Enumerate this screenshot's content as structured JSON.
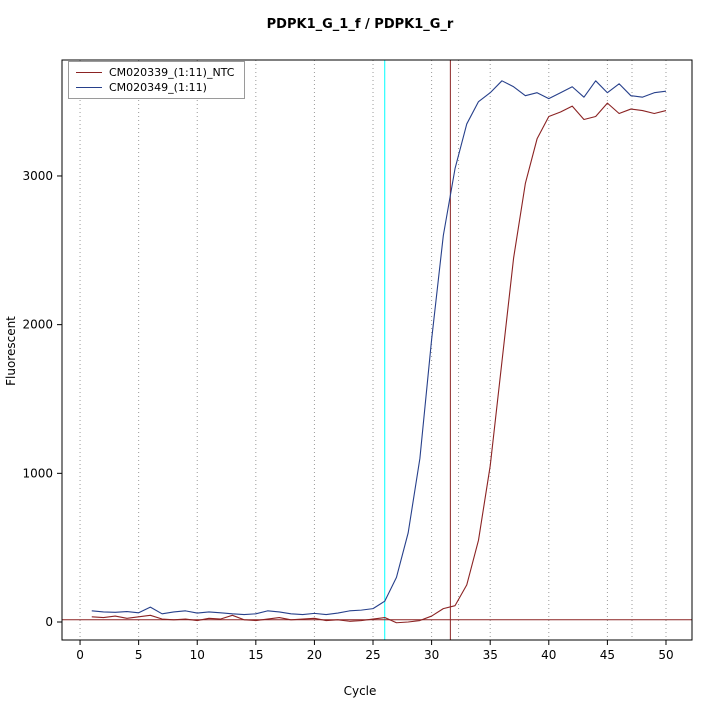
{
  "chart_data": {
    "type": "line",
    "title": "PDPK1_G_1_f / PDPK1_G_r",
    "xlabel": "Cycle",
    "ylabel": "Fluorescent",
    "xlim": [
      -1.54,
      52.22
    ],
    "ylim": [
      -121,
      3780
    ],
    "x_ticks": [
      0,
      5,
      10,
      15,
      20,
      25,
      30,
      35,
      40,
      45,
      50
    ],
    "y_ticks": [
      0,
      1000,
      2000,
      3000
    ],
    "grid": "vertical-dotted",
    "grid_color": "#9a9a9a",
    "legend_position": "top-left",
    "x": [
      1,
      2,
      3,
      4,
      5,
      6,
      7,
      8,
      9,
      10,
      11,
      12,
      13,
      14,
      15,
      16,
      17,
      18,
      19,
      20,
      21,
      22,
      23,
      24,
      25,
      26,
      27,
      28,
      29,
      30,
      31,
      32,
      33,
      34,
      35,
      36,
      37,
      38,
      39,
      40,
      41,
      42,
      43,
      44,
      45,
      46,
      47,
      48,
      49,
      50
    ],
    "series": [
      {
        "name": "CM020339_(1:11)_NTC",
        "color": "#8b2323",
        "values": [
          35,
          30,
          40,
          25,
          35,
          45,
          20,
          15,
          20,
          10,
          25,
          20,
          45,
          15,
          10,
          20,
          30,
          15,
          20,
          25,
          10,
          15,
          5,
          10,
          20,
          30,
          -5,
          0,
          10,
          40,
          90,
          110,
          250,
          550,
          1050,
          1750,
          2450,
          2950,
          3250,
          3400,
          3430,
          3470,
          3380,
          3400,
          3490,
          3420,
          3450,
          3440,
          3420,
          3440
        ]
      },
      {
        "name": "CM020349_(1:11)",
        "color": "#27408b",
        "values": [
          75,
          68,
          65,
          70,
          62,
          100,
          55,
          68,
          75,
          60,
          68,
          62,
          55,
          50,
          55,
          75,
          68,
          55,
          50,
          58,
          50,
          60,
          75,
          80,
          90,
          140,
          300,
          600,
          1100,
          1900,
          2600,
          3050,
          3350,
          3500,
          3560,
          3640,
          3600,
          3540,
          3560,
          3520,
          3560,
          3600,
          3530,
          3640,
          3560,
          3620,
          3540,
          3530,
          3560,
          3570
        ]
      }
    ],
    "threshold_line": {
      "y": 15,
      "color": "#8b2323"
    },
    "vlines": [
      {
        "x": 26.0,
        "color": "#00ffff",
        "style": "solid",
        "name": "cyan-marker-line"
      },
      {
        "x": 31.6,
        "color": "#8b2323",
        "style": "solid",
        "name": "red-ct-line"
      },
      {
        "x": 32.3,
        "color": "#9a9a9a",
        "style": "dotted",
        "name": "dotted-marker-1"
      },
      {
        "x": 47.1,
        "color": "#9a9a9a",
        "style": "dotted",
        "name": "dotted-marker-2"
      }
    ]
  }
}
